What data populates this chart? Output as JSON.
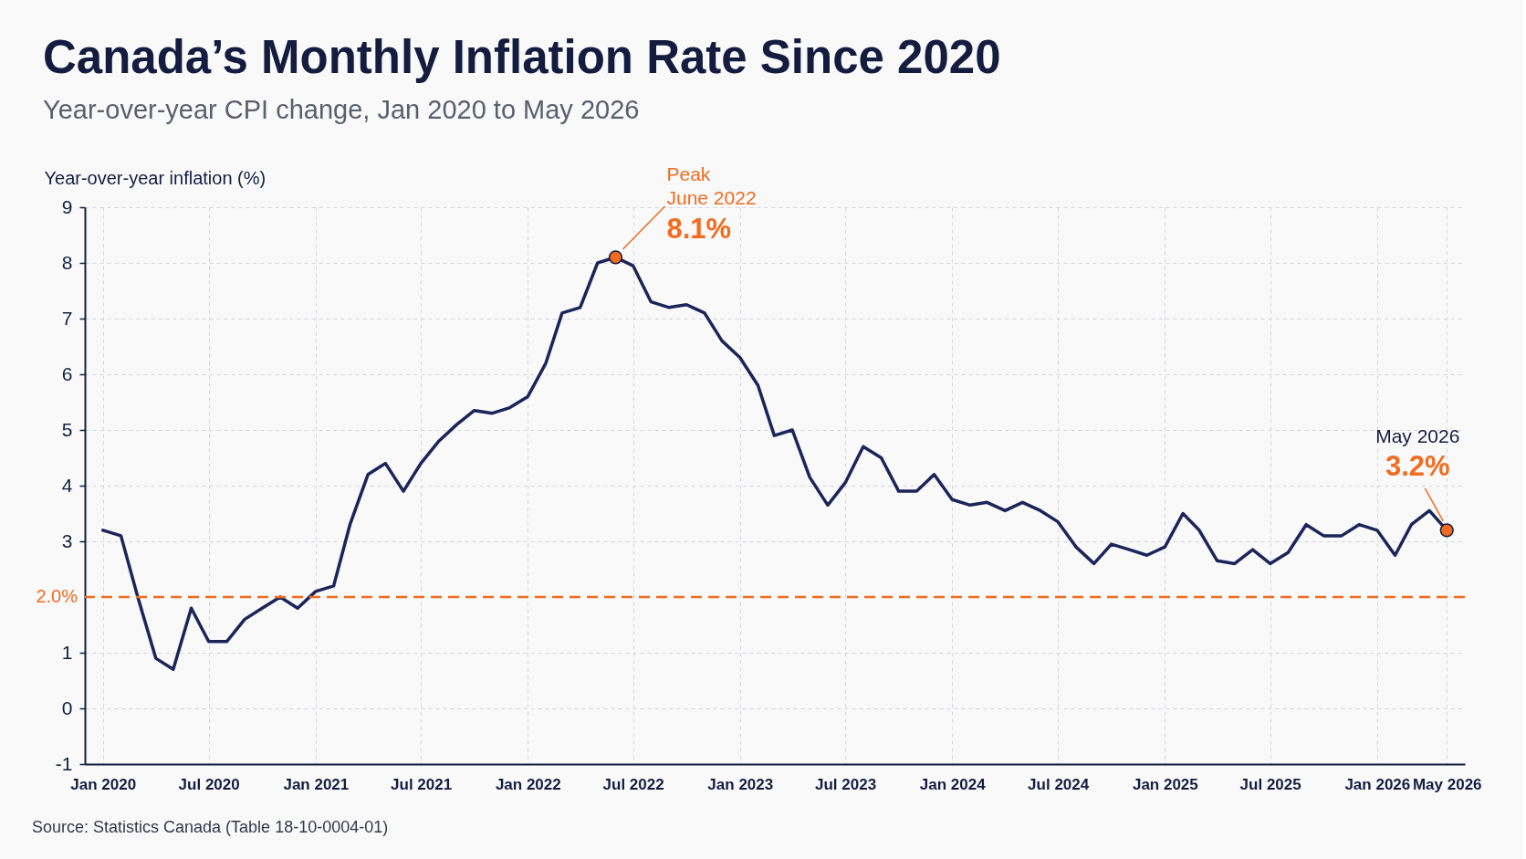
{
  "chart_data": {
    "type": "line",
    "title": "Canada’s Monthly Inflation Rate Since 2020",
    "subtitle": "Year-over-year CPI change, Jan 2020 to May 2026",
    "ylabel": "Year-over-year inflation (%)",
    "x": [
      "2020-01",
      "2020-02",
      "2020-03",
      "2020-04",
      "2020-05",
      "2020-06",
      "2020-07",
      "2020-08",
      "2020-09",
      "2020-10",
      "2020-11",
      "2020-12",
      "2021-01",
      "2021-02",
      "2021-03",
      "2021-04",
      "2021-05",
      "2021-06",
      "2021-07",
      "2021-08",
      "2021-09",
      "2021-10",
      "2021-11",
      "2021-12",
      "2022-01",
      "2022-02",
      "2022-03",
      "2022-04",
      "2022-05",
      "2022-06",
      "2022-07",
      "2022-08",
      "2022-09",
      "2022-10",
      "2022-11",
      "2022-12",
      "2023-01",
      "2023-02",
      "2023-03",
      "2023-04",
      "2023-05",
      "2023-06",
      "2023-07",
      "2023-08",
      "2023-09",
      "2023-10",
      "2023-11",
      "2023-12",
      "2024-01",
      "2024-02",
      "2024-03",
      "2024-04",
      "2024-05",
      "2024-06",
      "2024-07",
      "2024-08",
      "2024-09",
      "2024-10",
      "2024-11",
      "2024-12",
      "2025-01",
      "2025-02",
      "2025-03",
      "2025-04",
      "2025-05",
      "2025-06",
      "2025-07",
      "2025-08",
      "2025-09",
      "2025-10",
      "2025-11",
      "2025-12",
      "2026-01",
      "2026-02",
      "2026-03",
      "2026-04",
      "2026-05"
    ],
    "series": [
      {
        "color": "#1b2559",
        "values": [
          3.2,
          3.1,
          2.0,
          0.9,
          0.7,
          1.8,
          1.2,
          1.2,
          1.6,
          1.8,
          2.0,
          1.8,
          2.1,
          2.2,
          3.3,
          4.2,
          4.4,
          3.9,
          4.4,
          4.8,
          5.1,
          5.35,
          5.3,
          5.4,
          5.6,
          6.2,
          7.1,
          7.2,
          8.0,
          8.1,
          7.95,
          7.3,
          7.2,
          7.25,
          7.1,
          6.6,
          6.3,
          5.8,
          4.9,
          5.0,
          4.15,
          3.65,
          4.05,
          4.7,
          4.5,
          3.9,
          3.9,
          4.2,
          3.75,
          3.65,
          3.7,
          3.55,
          3.7,
          3.55,
          3.35,
          2.9,
          2.6,
          2.95,
          2.85,
          2.75,
          2.9,
          3.5,
          3.2,
          2.65,
          2.6,
          2.85,
          2.6,
          2.8,
          3.3,
          3.1,
          3.1,
          3.3,
          3.2,
          2.75,
          3.3,
          3.55,
          3.2
        ]
      },
      {
        "type": "scatter",
        "marker": "circle",
        "color": "#f26b1f",
        "x": [
          "2022-06",
          "2026-05"
        ],
        "values": [
          8.1,
          3.2
        ]
      }
    ],
    "xlim": [
      "2019-12",
      "2026-06"
    ],
    "xticks": [
      {
        "value": "2020-01",
        "label": "Jan 2020"
      },
      {
        "value": "2020-07",
        "label": "Jul 2020"
      },
      {
        "value": "2021-01",
        "label": "Jan 2021"
      },
      {
        "value": "2021-07",
        "label": "Jul 2021"
      },
      {
        "value": "2022-01",
        "label": "Jan 2022"
      },
      {
        "value": "2022-07",
        "label": "Jul 2022"
      },
      {
        "value": "2023-01",
        "label": "Jan 2023"
      },
      {
        "value": "2023-07",
        "label": "Jul 2023"
      },
      {
        "value": "2024-01",
        "label": "Jan 2024"
      },
      {
        "value": "2024-07",
        "label": "Jul 2024"
      },
      {
        "value": "2025-01",
        "label": "Jan 2025"
      },
      {
        "value": "2025-07",
        "label": "Jul 2025"
      },
      {
        "value": "2026-01",
        "label": "Jan 2026"
      },
      {
        "value": "2026-05",
        "label": "May 2026"
      }
    ],
    "ylim": [
      -1,
      9
    ],
    "yticks": [
      -1,
      0,
      1,
      3,
      4,
      5,
      6,
      7,
      8,
      9
    ],
    "grid": true,
    "line_style": "solid",
    "ref_lines": [
      {
        "axis": "y",
        "value": 2,
        "label": "2.0%",
        "color": "#f26b1f",
        "line_style": "dashed"
      }
    ],
    "annotations": [
      {
        "text": "Peak\nJune 2022\n8.1%",
        "x": "2022-06",
        "y": 8.1
      },
      {
        "text": "May 2026\n3.2%",
        "x": "2026-05",
        "y": 3.2
      },
      "Source: Statistics Canada (Table 18-10-0004-01)"
    ]
  }
}
